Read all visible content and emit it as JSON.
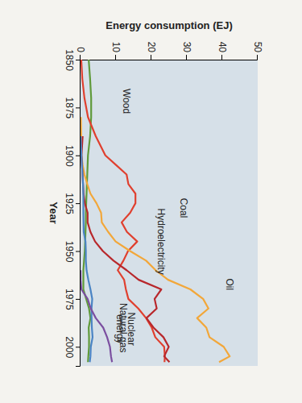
{
  "chart_data": {
    "type": "line",
    "x_label": "Year",
    "y_label": "Energy consumption (EJ)",
    "x": [
      1850,
      1860,
      1870,
      1880,
      1890,
      1900,
      1905,
      1910,
      1915,
      1920,
      1925,
      1930,
      1935,
      1940,
      1945,
      1950,
      1955,
      1960,
      1965,
      1970,
      1975,
      1980,
      1985,
      1990,
      1995,
      2000,
      2005,
      2008
    ],
    "xlim": [
      1850,
      2010
    ],
    "xticks": [
      1850,
      1875,
      1900,
      1925,
      1950,
      1975,
      2000
    ],
    "ylim": [
      0,
      50
    ],
    "yticks": [
      0,
      10,
      20,
      30,
      40,
      50
    ],
    "series": [
      {
        "name": "Wood",
        "color": "#5f9a3a",
        "values": [
          2.3,
          2.7,
          3.0,
          3.0,
          2.7,
          2.1,
          2.0,
          1.9,
          1.8,
          1.7,
          1.6,
          1.5,
          1.5,
          1.4,
          1.3,
          1.2,
          1.0,
          0.8,
          0.8,
          0.8,
          1.6,
          2.4,
          2.8,
          2.3,
          2.4,
          2.4,
          2.2,
          2.1
        ]
      },
      {
        "name": "Coal",
        "color": "#e0402f",
        "values": [
          0.2,
          0.5,
          1.1,
          2.1,
          4.3,
          7.0,
          10.0,
          13.0,
          13.5,
          15.5,
          15.5,
          14.0,
          11.6,
          13.1,
          16.0,
          13.4,
          12.1,
          10.5,
          12.3,
          12.8,
          13.5,
          16.3,
          18.5,
          20.1,
          21.1,
          23.6,
          23.8,
          23.7
        ]
      },
      {
        "name": "Oil",
        "color": "#f2a73a",
        "values": [
          null,
          null,
          null,
          0.1,
          0.2,
          0.25,
          0.6,
          1.1,
          1.9,
          2.8,
          4.5,
          5.8,
          6.0,
          7.8,
          9.9,
          14.0,
          18.5,
          21.2,
          24.7,
          31.0,
          34.6,
          36.1,
          32.9,
          35.5,
          36.4,
          40.4,
          42.1,
          39.1
        ]
      },
      {
        "name": "Natural gas",
        "color": "#b8282c",
        "values": [
          null,
          null,
          null,
          null,
          0.6,
          0.27,
          0.4,
          0.57,
          0.7,
          0.86,
          1.2,
          2.0,
          2.0,
          2.8,
          4.1,
          6.3,
          9.3,
          13.0,
          16.4,
          22.8,
          20.9,
          21.5,
          18.6,
          20.6,
          23.4,
          24.9,
          23.6,
          25.1
        ]
      },
      {
        "name": "Hydroelectricity",
        "color": "#4a84c4",
        "values": [
          null,
          null,
          null,
          null,
          0.02,
          0.26,
          0.4,
          0.56,
          0.7,
          0.78,
          0.8,
          0.8,
          0.85,
          0.9,
          1.4,
          1.5,
          1.5,
          1.7,
          2.2,
          2.8,
          3.3,
          3.1,
          3.1,
          3.2,
          3.4,
          2.9,
          2.8,
          2.6
        ]
      },
      {
        "name": "Nuclear energy",
        "color": "#7b4fa0",
        "values": [
          null,
          null,
          null,
          null,
          null,
          null,
          null,
          null,
          null,
          null,
          null,
          null,
          null,
          null,
          null,
          null,
          null,
          0.01,
          0.04,
          0.25,
          2.0,
          2.9,
          4.3,
          6.4,
          7.5,
          8.3,
          8.6,
          8.9
        ]
      }
    ]
  }
}
